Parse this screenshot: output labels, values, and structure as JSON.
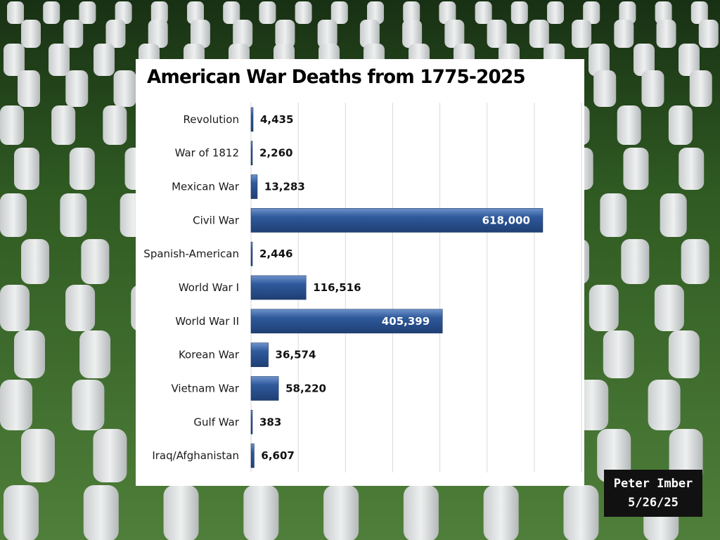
{
  "chart_data": {
    "type": "bar",
    "orientation": "horizontal",
    "title": "American War Deaths from 1775-2025",
    "categories": [
      "Revolution",
      "War of 1812",
      "Mexican War",
      "Civil War",
      "Spanish-American",
      "World War I",
      "World War II",
      "Korean War",
      "Vietnam War",
      "Gulf War",
      "Iraq/Afghanistan"
    ],
    "values": [
      4435,
      2260,
      13283,
      618000,
      2446,
      116516,
      405399,
      36574,
      58220,
      383,
      6607
    ],
    "value_labels": [
      "4,435",
      "2,260",
      "13,283",
      "618,000",
      "2,446",
      "116,516",
      "405,399",
      "36,574",
      "58,220",
      "383",
      "6,607"
    ],
    "xlim": [
      0,
      700000
    ],
    "grid": true,
    "legend": "none",
    "bar_color": "#2e5597",
    "xlabel": "",
    "ylabel": ""
  },
  "credit": {
    "name": "Peter Imber",
    "date": "5/26/25"
  },
  "background": "cemetery-headstones-photo"
}
